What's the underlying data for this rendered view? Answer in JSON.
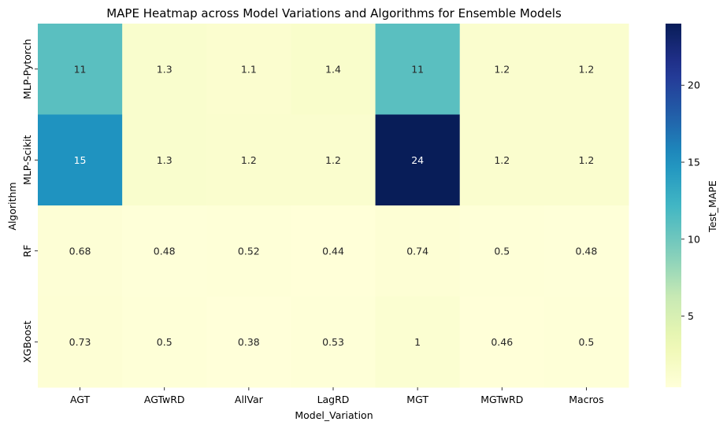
{
  "chart_data": {
    "type": "heatmap",
    "title": "MAPE Heatmap across Model Variations and Algorithms for Ensemble Models",
    "xlabel": "Model_Variation",
    "ylabel": "Algorithm",
    "x_categories": [
      "AGT",
      "AGTwRD",
      "AllVar",
      "LagRD",
      "MGT",
      "MGTwRD",
      "Macros"
    ],
    "y_categories": [
      "MLP-Pytorch",
      "MLP-Scikit",
      "RF",
      "XGBoost"
    ],
    "values": [
      [
        11,
        1.3,
        1.1,
        1.4,
        11,
        1.2,
        1.2
      ],
      [
        15,
        1.3,
        1.2,
        1.2,
        24,
        1.2,
        1.2
      ],
      [
        0.68,
        0.48,
        0.52,
        0.44,
        0.74,
        0.5,
        0.48
      ],
      [
        0.73,
        0.5,
        0.38,
        0.53,
        1,
        0.46,
        0.5
      ]
    ],
    "annotations": [
      [
        "11",
        "1.3",
        "1.1",
        "1.4",
        "11",
        "1.2",
        "1.2"
      ],
      [
        "15",
        "1.3",
        "1.2",
        "1.2",
        "24",
        "1.2",
        "1.2"
      ],
      [
        "0.68",
        "0.48",
        "0.52",
        "0.44",
        "0.74",
        "0.5",
        "0.48"
      ],
      [
        "0.73",
        "0.5",
        "0.38",
        "0.53",
        "1",
        "0.46",
        "0.5"
      ]
    ],
    "colorbar": {
      "label": "Test_MAPE",
      "colormap": "YlGnBu",
      "vmin": 0.38,
      "vmax": 24,
      "ticks": [
        5,
        10,
        15,
        20
      ],
      "tick_labels": [
        "5",
        "10",
        "15",
        "20"
      ]
    }
  }
}
